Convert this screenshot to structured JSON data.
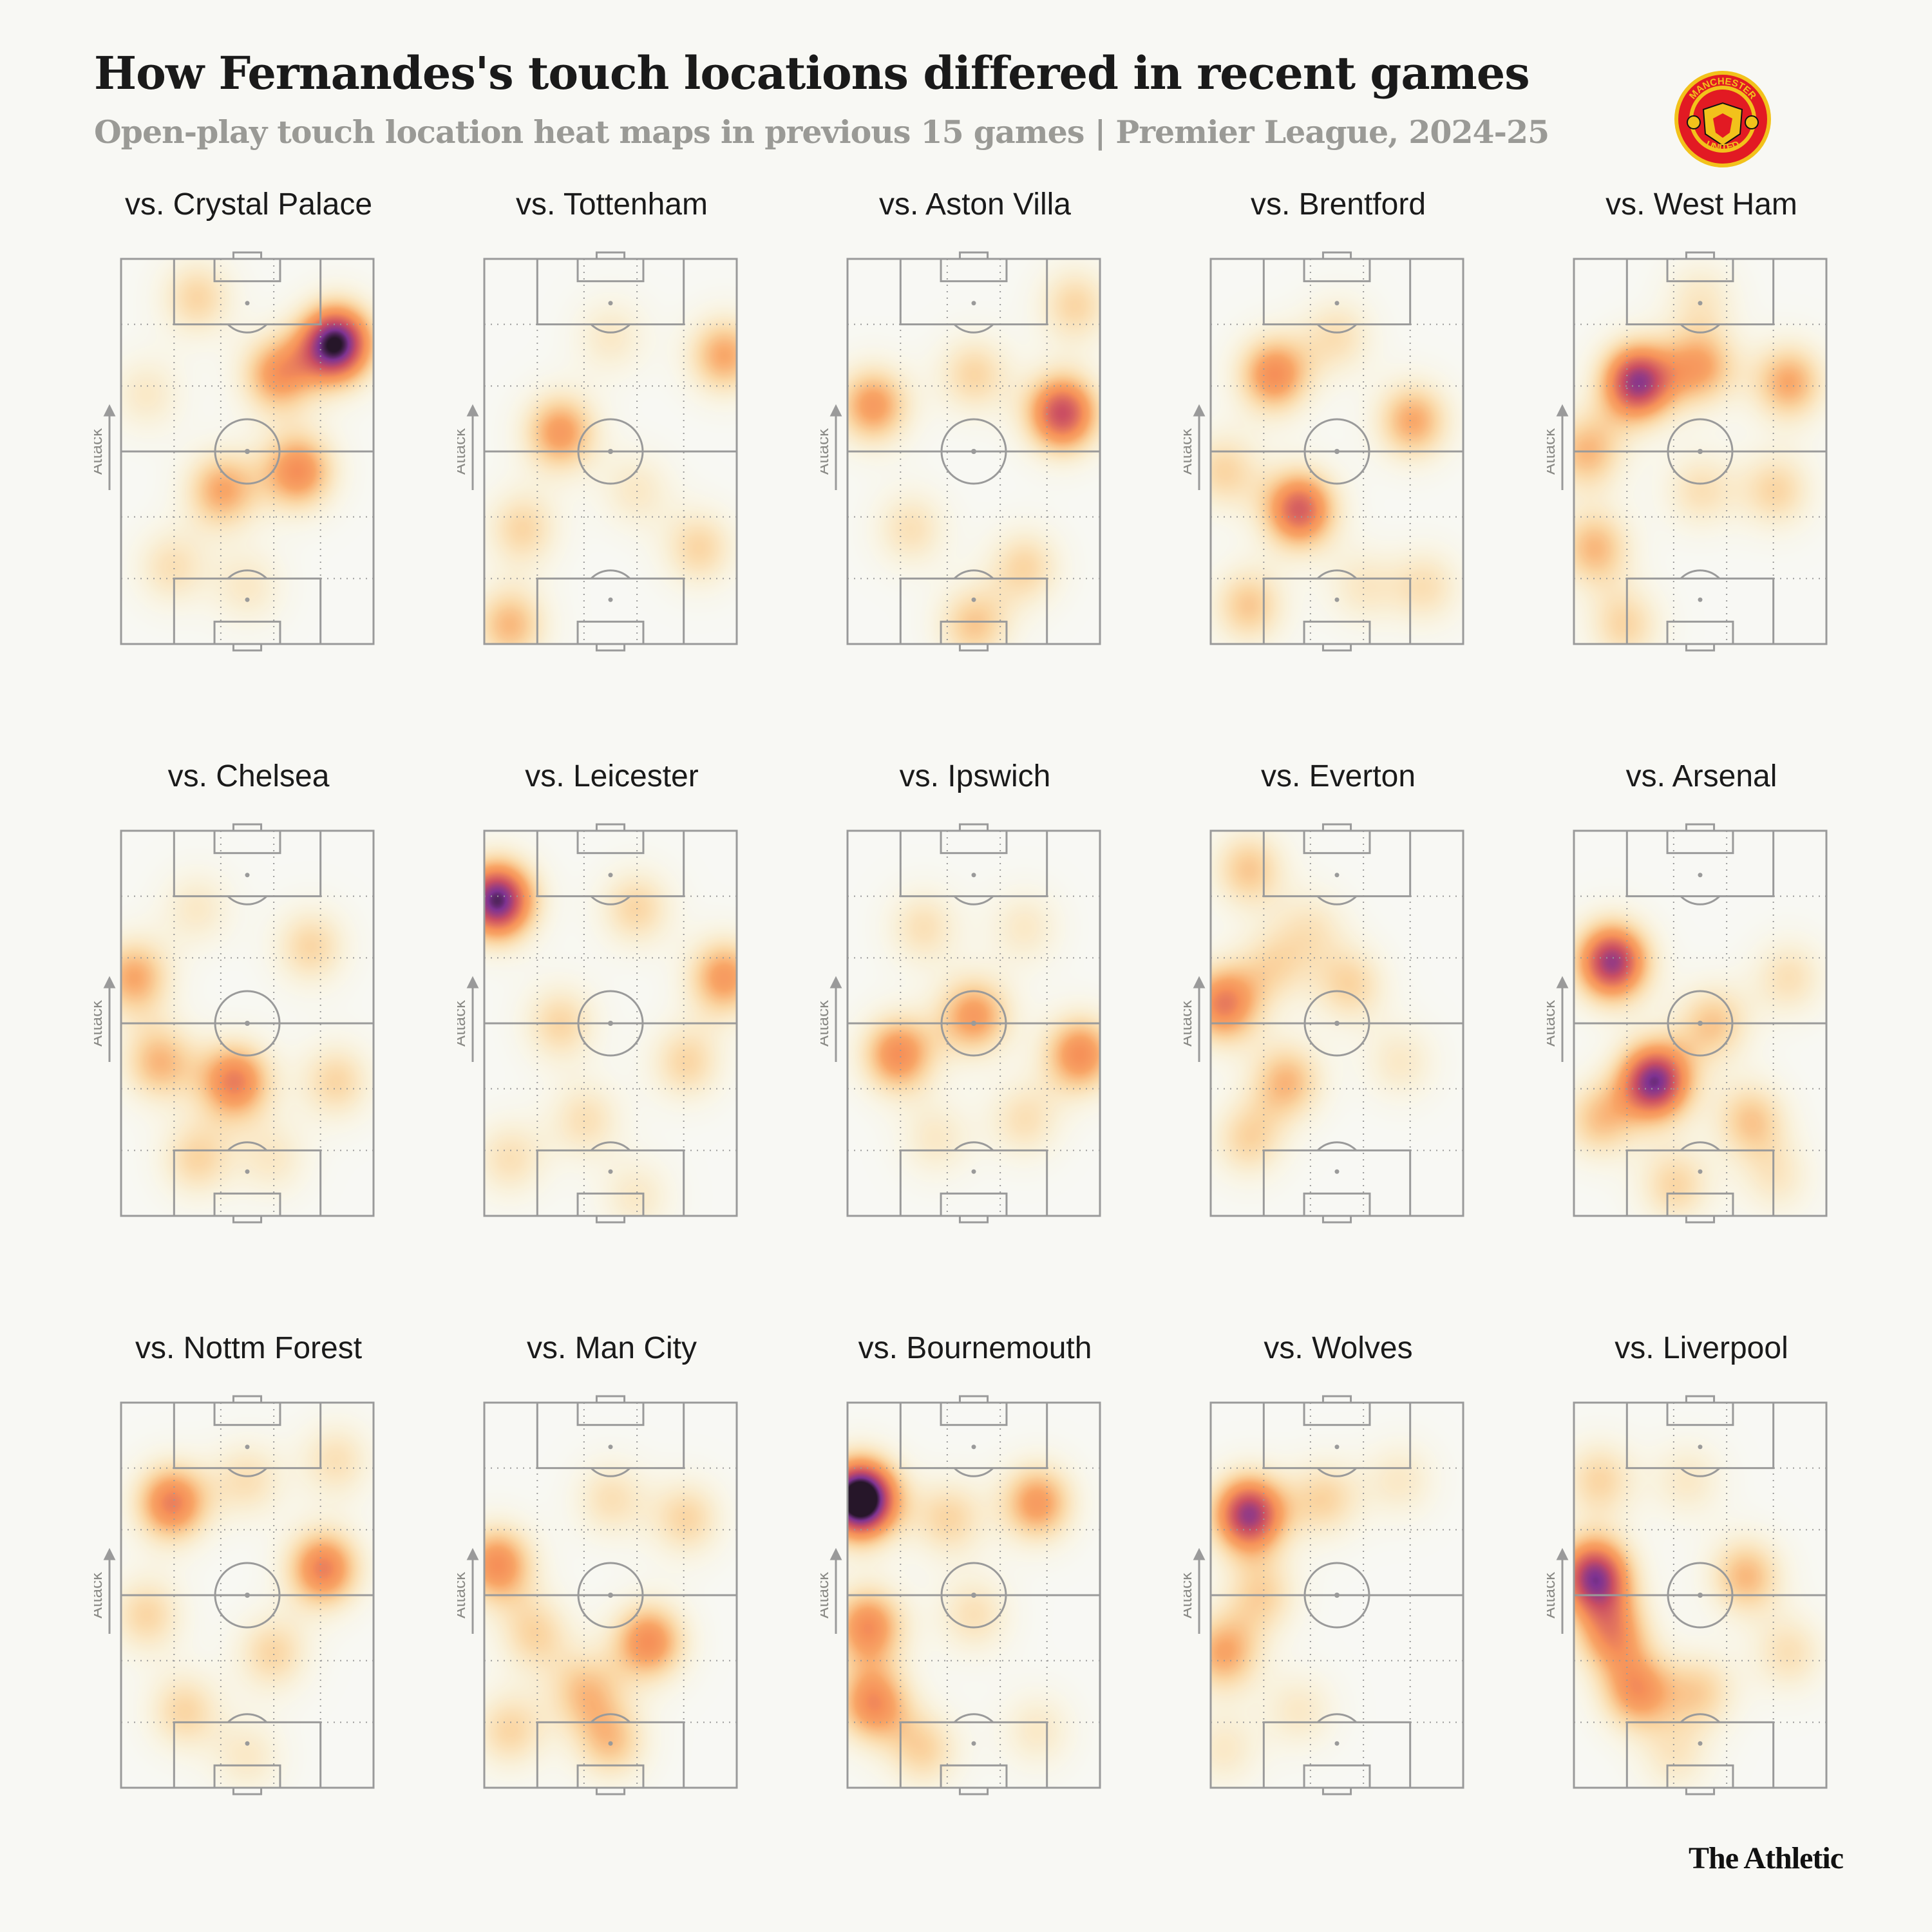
{
  "header": {
    "title": "How Fernandes's touch locations differed in recent games",
    "subtitle": "Open-play touch location heat maps in previous 15 games | Premier League, 2024-25"
  },
  "branding": {
    "logo_icon": "manchester-united-crest-icon",
    "logo_text_top": "MANCHESTER",
    "logo_text_bottom": "UNITED",
    "publisher": "The Athletic"
  },
  "colors": {
    "background": "#f8f8f4",
    "pitch_lines": "#9a9a9a",
    "heat_low": "#fff6b8",
    "heat_mid": "#f7914f",
    "heat_high": "#7a2a8e",
    "heat_peak": "#1a0a1e"
  },
  "chart_data": {
    "type": "heatmap",
    "attack_label": "Attack",
    "attack_direction": "up",
    "value_scale": [
      0,
      1
    ],
    "panels": [
      {
        "label": "vs. Crystal Palace",
        "hotspots": [
          [
            0.85,
            0.22,
            1.0
          ],
          [
            0.62,
            0.3,
            0.5
          ],
          [
            0.7,
            0.55,
            0.55
          ],
          [
            0.4,
            0.6,
            0.45
          ],
          [
            0.3,
            0.1,
            0.3
          ],
          [
            0.2,
            0.8,
            0.25
          ],
          [
            0.5,
            0.85,
            0.2
          ],
          [
            0.1,
            0.35,
            0.2
          ]
        ]
      },
      {
        "label": "vs. Tottenham",
        "hotspots": [
          [
            0.95,
            0.25,
            0.45
          ],
          [
            0.3,
            0.45,
            0.5
          ],
          [
            0.15,
            0.7,
            0.3
          ],
          [
            0.85,
            0.75,
            0.3
          ],
          [
            0.1,
            0.95,
            0.4
          ],
          [
            0.5,
            0.2,
            0.2
          ],
          [
            0.6,
            0.6,
            0.2
          ]
        ]
      },
      {
        "label": "vs. Aston Villa",
        "hotspots": [
          [
            0.85,
            0.4,
            0.75
          ],
          [
            0.1,
            0.38,
            0.5
          ],
          [
            0.5,
            0.3,
            0.3
          ],
          [
            0.25,
            0.7,
            0.25
          ],
          [
            0.7,
            0.8,
            0.3
          ],
          [
            0.5,
            0.95,
            0.35
          ],
          [
            0.9,
            0.12,
            0.3
          ]
        ]
      },
      {
        "label": "vs. Brentford",
        "hotspots": [
          [
            0.25,
            0.3,
            0.55
          ],
          [
            0.35,
            0.65,
            0.7
          ],
          [
            0.8,
            0.42,
            0.45
          ],
          [
            0.05,
            0.55,
            0.3
          ],
          [
            0.5,
            0.2,
            0.25
          ],
          [
            0.15,
            0.9,
            0.35
          ],
          [
            0.85,
            0.85,
            0.25
          ],
          [
            0.6,
            0.85,
            0.2
          ]
        ]
      },
      {
        "label": "vs. West Ham",
        "hotspots": [
          [
            0.25,
            0.32,
            0.85
          ],
          [
            0.5,
            0.28,
            0.45
          ],
          [
            0.85,
            0.32,
            0.45
          ],
          [
            0.05,
            0.5,
            0.4
          ],
          [
            0.08,
            0.75,
            0.4
          ],
          [
            0.8,
            0.6,
            0.3
          ],
          [
            0.5,
            0.6,
            0.25
          ],
          [
            0.5,
            0.1,
            0.2
          ],
          [
            0.2,
            0.95,
            0.3
          ]
        ]
      },
      {
        "label": "vs. Chelsea",
        "hotspots": [
          [
            0.05,
            0.38,
            0.45
          ],
          [
            0.45,
            0.65,
            0.6
          ],
          [
            0.15,
            0.6,
            0.4
          ],
          [
            0.75,
            0.3,
            0.3
          ],
          [
            0.3,
            0.2,
            0.2
          ],
          [
            0.85,
            0.65,
            0.3
          ],
          [
            0.3,
            0.85,
            0.3
          ],
          [
            0.6,
            0.85,
            0.2
          ]
        ]
      },
      {
        "label": "vs. Leicester",
        "hotspots": [
          [
            0.05,
            0.18,
            0.95
          ],
          [
            0.95,
            0.38,
            0.5
          ],
          [
            0.6,
            0.2,
            0.3
          ],
          [
            0.3,
            0.5,
            0.3
          ],
          [
            0.8,
            0.6,
            0.3
          ],
          [
            0.4,
            0.75,
            0.25
          ],
          [
            0.1,
            0.85,
            0.25
          ],
          [
            0.6,
            0.95,
            0.2
          ]
        ]
      },
      {
        "label": "vs. Ipswich",
        "hotspots": [
          [
            0.2,
            0.58,
            0.55
          ],
          [
            0.5,
            0.48,
            0.5
          ],
          [
            0.92,
            0.58,
            0.55
          ],
          [
            0.3,
            0.25,
            0.25
          ],
          [
            0.7,
            0.25,
            0.2
          ],
          [
            0.35,
            0.8,
            0.2
          ],
          [
            0.7,
            0.75,
            0.25
          ]
        ]
      },
      {
        "label": "vs. Everton",
        "hotspots": [
          [
            0.05,
            0.45,
            0.6
          ],
          [
            0.15,
            0.1,
            0.35
          ],
          [
            0.3,
            0.65,
            0.4
          ],
          [
            0.15,
            0.8,
            0.3
          ],
          [
            0.55,
            0.4,
            0.3
          ],
          [
            0.75,
            0.6,
            0.2
          ],
          [
            0.4,
            0.25,
            0.2
          ],
          [
            0.25,
            0.35,
            0.25
          ]
        ]
      },
      {
        "label": "vs. Arsenal",
        "hotspots": [
          [
            0.15,
            0.34,
            0.85
          ],
          [
            0.32,
            0.65,
            0.9
          ],
          [
            0.55,
            0.5,
            0.35
          ],
          [
            0.7,
            0.75,
            0.35
          ],
          [
            0.1,
            0.75,
            0.35
          ],
          [
            0.85,
            0.38,
            0.25
          ],
          [
            0.4,
            0.92,
            0.3
          ],
          [
            0.8,
            0.9,
            0.2
          ]
        ]
      },
      {
        "label": "vs. Nottm Forest",
        "hotspots": [
          [
            0.2,
            0.26,
            0.6
          ],
          [
            0.8,
            0.43,
            0.6
          ],
          [
            0.1,
            0.55,
            0.3
          ],
          [
            0.5,
            0.2,
            0.25
          ],
          [
            0.6,
            0.65,
            0.3
          ],
          [
            0.25,
            0.8,
            0.3
          ],
          [
            0.85,
            0.15,
            0.25
          ],
          [
            0.5,
            0.92,
            0.2
          ]
        ]
      },
      {
        "label": "vs. Man City",
        "hotspots": [
          [
            0.05,
            0.42,
            0.55
          ],
          [
            0.65,
            0.62,
            0.55
          ],
          [
            0.4,
            0.75,
            0.35
          ],
          [
            0.2,
            0.6,
            0.3
          ],
          [
            0.5,
            0.25,
            0.25
          ],
          [
            0.8,
            0.3,
            0.3
          ],
          [
            0.1,
            0.85,
            0.3
          ],
          [
            0.5,
            0.88,
            0.35
          ]
        ]
      },
      {
        "label": "vs. Bournemouth",
        "hotspots": [
          [
            0.05,
            0.25,
            1.2
          ],
          [
            0.08,
            0.58,
            0.55
          ],
          [
            0.1,
            0.78,
            0.55
          ],
          [
            0.75,
            0.26,
            0.5
          ],
          [
            0.4,
            0.3,
            0.3
          ],
          [
            0.5,
            0.55,
            0.25
          ],
          [
            0.3,
            0.9,
            0.3
          ],
          [
            0.75,
            0.85,
            0.2
          ]
        ]
      },
      {
        "label": "vs. Wolves",
        "hotspots": [
          [
            0.15,
            0.29,
            0.85
          ],
          [
            0.05,
            0.65,
            0.45
          ],
          [
            0.45,
            0.25,
            0.3
          ],
          [
            0.2,
            0.5,
            0.3
          ],
          [
            0.35,
            0.8,
            0.2
          ],
          [
            0.05,
            0.9,
            0.2
          ],
          [
            0.75,
            0.2,
            0.2
          ]
        ]
      },
      {
        "label": "vs. Liverpool",
        "hotspots": [
          [
            0.08,
            0.45,
            0.85
          ],
          [
            0.15,
            0.6,
            0.5
          ],
          [
            0.25,
            0.75,
            0.5
          ],
          [
            0.68,
            0.45,
            0.4
          ],
          [
            0.45,
            0.2,
            0.2
          ],
          [
            0.5,
            0.75,
            0.3
          ],
          [
            0.1,
            0.2,
            0.3
          ],
          [
            0.85,
            0.65,
            0.25
          ],
          [
            0.4,
            0.92,
            0.2
          ]
        ]
      }
    ]
  }
}
